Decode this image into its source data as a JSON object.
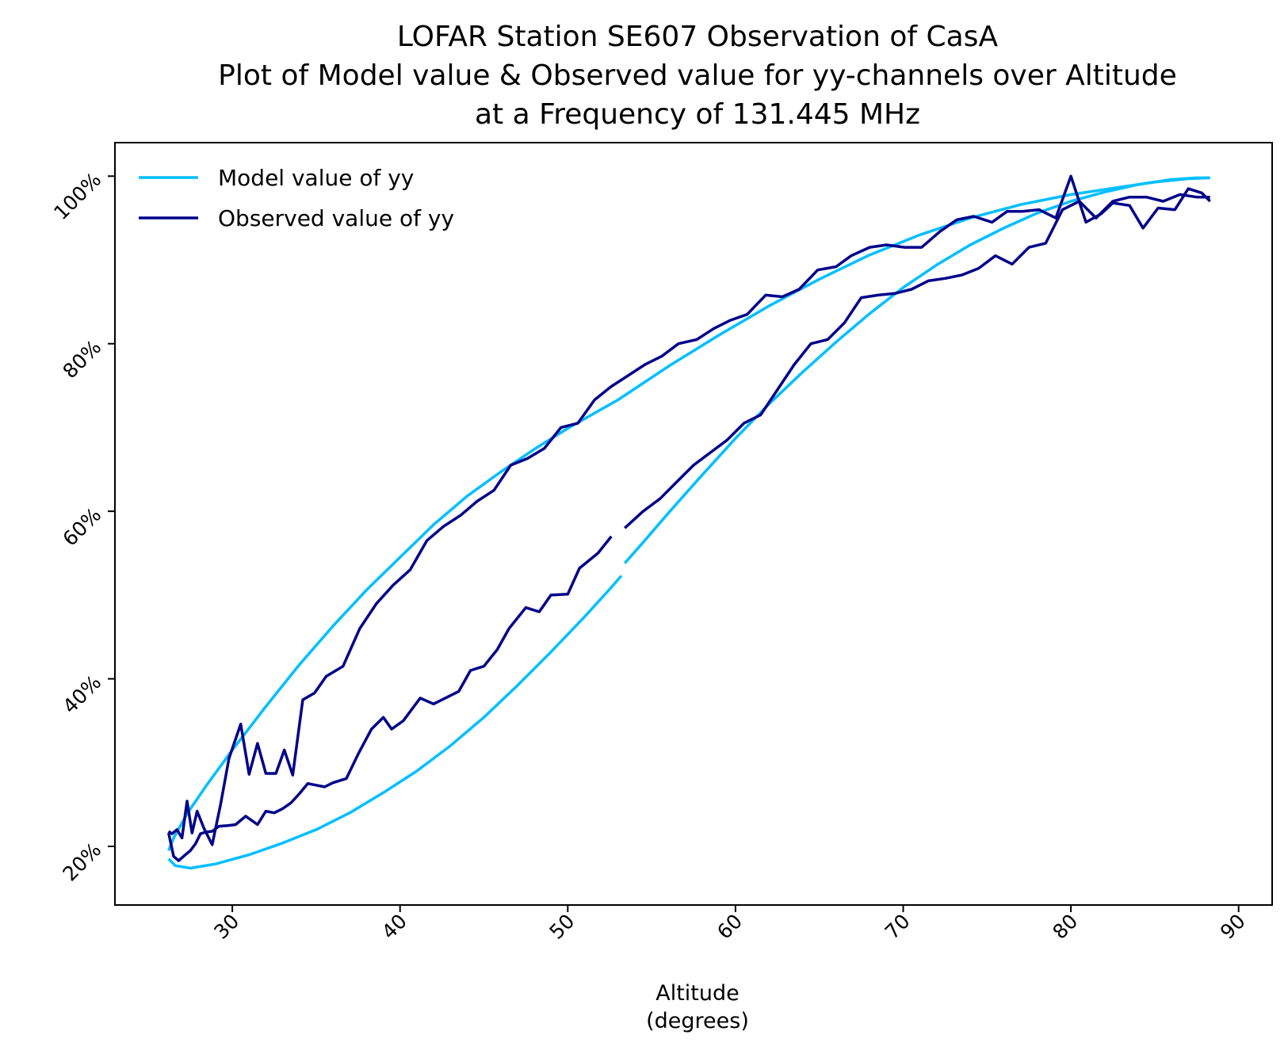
{
  "chart_data": {
    "type": "line",
    "title": [
      "LOFAR Station SE607 Observation of CasA",
      "Plot of Model value & Observed value for yy-channels over Altitude",
      "at a Frequency of 131.445 MHz"
    ],
    "xlabel": [
      "Altitude",
      "(degrees)"
    ],
    "ylabel": "",
    "xlim": [
      23,
      92
    ],
    "ylim": [
      13,
      104
    ],
    "xticks": [
      30,
      40,
      50,
      60,
      70,
      80,
      90
    ],
    "xtick_labels": [
      "30",
      "40",
      "50",
      "60",
      "70",
      "80",
      "90"
    ],
    "yticks": [
      20,
      40,
      60,
      80,
      100
    ],
    "ytick_labels": [
      "20%",
      "40%",
      "60%",
      "80%",
      "100%"
    ],
    "legend_position": "upper-left",
    "series": [
      {
        "name": "Model value of yy",
        "color": "#00bfff",
        "segments": [
          [
            [
              26.2,
              18.5
            ],
            [
              26.6,
              17.7
            ],
            [
              27.5,
              17.4
            ],
            [
              29.0,
              17.9
            ],
            [
              31.0,
              19.0
            ],
            [
              33.0,
              20.4
            ],
            [
              35.0,
              22.0
            ],
            [
              37.0,
              24.0
            ],
            [
              39.0,
              26.4
            ],
            [
              41.0,
              29.0
            ],
            [
              43.0,
              32.0
            ],
            [
              45.0,
              35.4
            ],
            [
              47.0,
              39.2
            ],
            [
              49.0,
              43.2
            ],
            [
              51.0,
              47.4
            ],
            [
              52.5,
              50.7
            ],
            [
              53.2,
              52.3
            ]
          ],
          [
            [
              53.4,
              53.8
            ],
            [
              54.5,
              56.3
            ],
            [
              56.0,
              59.8
            ],
            [
              58.0,
              64.3
            ],
            [
              60.0,
              68.7
            ],
            [
              62.0,
              72.8
            ],
            [
              64.0,
              76.6
            ],
            [
              66.0,
              80.2
            ],
            [
              68.0,
              83.6
            ],
            [
              70.0,
              86.7
            ],
            [
              72.0,
              89.4
            ],
            [
              74.0,
              91.8
            ],
            [
              76.0,
              93.8
            ],
            [
              78.0,
              95.6
            ],
            [
              80.0,
              97.0
            ],
            [
              82.0,
              98.1
            ],
            [
              84.0,
              99.0
            ],
            [
              86.0,
              99.6
            ],
            [
              87.5,
              99.8
            ],
            [
              88.3,
              99.8
            ]
          ],
          [
            [
              88.3,
              99.8
            ],
            [
              87.0,
              99.7
            ],
            [
              85.0,
              99.3
            ],
            [
              83.0,
              98.7
            ],
            [
              80.0,
              97.8
            ],
            [
              77.0,
              96.6
            ],
            [
              74.0,
              95.0
            ],
            [
              71.0,
              93.0
            ],
            [
              68.0,
              90.6
            ],
            [
              65.0,
              87.7
            ],
            [
              62.0,
              84.5
            ],
            [
              59.0,
              81.0
            ],
            [
              56.0,
              77.3
            ],
            [
              53.0,
              73.3
            ],
            [
              50.0,
              69.9
            ],
            [
              48.0,
              67.4
            ],
            [
              46.0,
              64.7
            ],
            [
              44.0,
              61.8
            ],
            [
              42.0,
              58.4
            ],
            [
              40.0,
              54.5
            ],
            [
              38.0,
              50.6
            ],
            [
              36.0,
              46.3
            ],
            [
              34.0,
              41.7
            ],
            [
              32.0,
              36.7
            ],
            [
              30.0,
              31.5
            ],
            [
              28.5,
              27.4
            ],
            [
              27.3,
              23.9
            ],
            [
              26.5,
              21.0
            ],
            [
              26.2,
              19.5
            ]
          ]
        ]
      },
      {
        "name": "Observed value of yy",
        "color": "#00008b",
        "segments": [
          [
            [
              26.2,
              21.6
            ],
            [
              26.5,
              18.8
            ],
            [
              26.8,
              18.3
            ],
            [
              27.2,
              19.0
            ],
            [
              27.5,
              19.5
            ],
            [
              27.8,
              20.3
            ],
            [
              28.1,
              21.5
            ],
            [
              28.4,
              21.7
            ],
            [
              28.8,
              21.8
            ],
            [
              29.2,
              22.4
            ],
            [
              29.8,
              22.5
            ],
            [
              30.2,
              22.6
            ],
            [
              30.8,
              23.6
            ],
            [
              31.5,
              22.6
            ],
            [
              32.0,
              24.2
            ],
            [
              32.5,
              24.0
            ],
            [
              33.0,
              24.5
            ],
            [
              33.5,
              25.2
            ],
            [
              34.0,
              26.3
            ],
            [
              34.5,
              27.5
            ],
            [
              35.0,
              27.3
            ],
            [
              35.5,
              27.1
            ],
            [
              36.0,
              27.6
            ],
            [
              36.8,
              28.1
            ],
            [
              37.5,
              31.0
            ],
            [
              38.3,
              34.0
            ],
            [
              39.0,
              35.4
            ],
            [
              39.5,
              34.0
            ],
            [
              40.2,
              35.0
            ],
            [
              41.2,
              37.7
            ],
            [
              42.0,
              37.0
            ],
            [
              42.8,
              37.8
            ],
            [
              43.5,
              38.5
            ],
            [
              44.2,
              41.0
            ],
            [
              45.0,
              41.5
            ],
            [
              45.8,
              43.5
            ],
            [
              46.5,
              46.0
            ],
            [
              47.5,
              48.5
            ],
            [
              48.3,
              48.0
            ],
            [
              49.0,
              50.0
            ],
            [
              50.0,
              50.1
            ],
            [
              50.7,
              53.2
            ],
            [
              51.8,
              55.0
            ],
            [
              52.6,
              57.0
            ]
          ],
          [
            [
              53.4,
              58.0
            ],
            [
              54.5,
              60.0
            ],
            [
              55.5,
              61.5
            ],
            [
              56.5,
              63.5
            ],
            [
              57.5,
              65.5
            ],
            [
              58.5,
              67.0
            ],
            [
              59.5,
              68.5
            ],
            [
              60.5,
              70.5
            ],
            [
              61.5,
              71.5
            ],
            [
              62.5,
              74.5
            ],
            [
              63.5,
              77.5
            ],
            [
              64.5,
              80.0
            ],
            [
              65.5,
              80.5
            ],
            [
              66.5,
              82.5
            ],
            [
              67.5,
              85.5
            ],
            [
              68.5,
              85.8
            ],
            [
              69.5,
              86.0
            ],
            [
              70.5,
              86.5
            ],
            [
              71.5,
              87.5
            ],
            [
              72.5,
              87.8
            ],
            [
              73.5,
              88.2
            ],
            [
              74.5,
              89.0
            ],
            [
              75.5,
              90.5
            ],
            [
              76.5,
              89.5
            ],
            [
              77.5,
              91.5
            ],
            [
              78.5,
              92.0
            ],
            [
              79.5,
              96.0
            ],
            [
              80.5,
              97.0
            ],
            [
              81.5,
              95.0
            ],
            [
              82.5,
              97.0
            ],
            [
              83.5,
              97.5
            ],
            [
              84.5,
              97.5
            ],
            [
              85.5,
              97.0
            ],
            [
              86.5,
              97.8
            ],
            [
              87.5,
              97.5
            ],
            [
              88.3,
              97.5
            ]
          ],
          [
            [
              88.3,
              97.0
            ],
            [
              87.8,
              98.0
            ],
            [
              87.0,
              98.5
            ],
            [
              86.2,
              96.0
            ],
            [
              85.2,
              96.2
            ],
            [
              84.3,
              93.8
            ],
            [
              83.5,
              96.5
            ],
            [
              82.5,
              96.8
            ],
            [
              81.8,
              95.5
            ],
            [
              80.9,
              94.5
            ],
            [
              80.0,
              100.0
            ],
            [
              79.1,
              95.0
            ],
            [
              78.1,
              96.0
            ],
            [
              77.1,
              95.8
            ],
            [
              76.2,
              95.8
            ],
            [
              75.3,
              94.5
            ],
            [
              74.2,
              95.2
            ],
            [
              73.2,
              94.8
            ],
            [
              72.2,
              93.4
            ],
            [
              71.1,
              91.5
            ],
            [
              70.1,
              91.5
            ],
            [
              69.0,
              91.8
            ],
            [
              68.0,
              91.5
            ],
            [
              66.9,
              90.5
            ],
            [
              66.0,
              89.2
            ],
            [
              64.9,
              88.8
            ],
            [
              63.8,
              86.5
            ],
            [
              62.8,
              85.6
            ],
            [
              61.8,
              85.8
            ],
            [
              60.7,
              83.5
            ],
            [
              59.7,
              82.8
            ],
            [
              58.7,
              81.8
            ],
            [
              57.7,
              80.5
            ],
            [
              56.6,
              80.0
            ],
            [
              55.6,
              78.5
            ],
            [
              54.6,
              77.5
            ],
            [
              53.6,
              76.2
            ],
            [
              52.6,
              74.9
            ],
            [
              51.6,
              73.3
            ],
            [
              50.6,
              70.5
            ],
            [
              49.6,
              70.0
            ],
            [
              48.6,
              67.5
            ],
            [
              47.6,
              66.3
            ],
            [
              46.6,
              65.5
            ],
            [
              45.6,
              62.5
            ],
            [
              44.6,
              61.2
            ],
            [
              43.6,
              59.5
            ],
            [
              42.6,
              58.2
            ],
            [
              41.6,
              56.5
            ],
            [
              40.6,
              53.0
            ],
            [
              39.6,
              51.2
            ],
            [
              38.6,
              49.0
            ],
            [
              37.6,
              46.0
            ],
            [
              36.6,
              41.5
            ],
            [
              35.6,
              40.3
            ],
            [
              34.9,
              38.3
            ],
            [
              34.2,
              37.5
            ],
            [
              33.6,
              28.5
            ],
            [
              33.1,
              31.5
            ],
            [
              32.6,
              28.7
            ],
            [
              32.0,
              28.7
            ],
            [
              31.5,
              32.3
            ],
            [
              31.0,
              28.6
            ],
            [
              30.5,
              34.6
            ],
            [
              29.8,
              30.5
            ],
            [
              29.3,
              25.0
            ],
            [
              28.8,
              20.2
            ],
            [
              28.3,
              22.2
            ],
            [
              27.9,
              24.2
            ],
            [
              27.6,
              21.6
            ],
            [
              27.3,
              25.4
            ],
            [
              27.0,
              21.0
            ],
            [
              26.7,
              22.0
            ],
            [
              26.4,
              21.5
            ],
            [
              26.2,
              21.8
            ]
          ]
        ]
      }
    ]
  }
}
